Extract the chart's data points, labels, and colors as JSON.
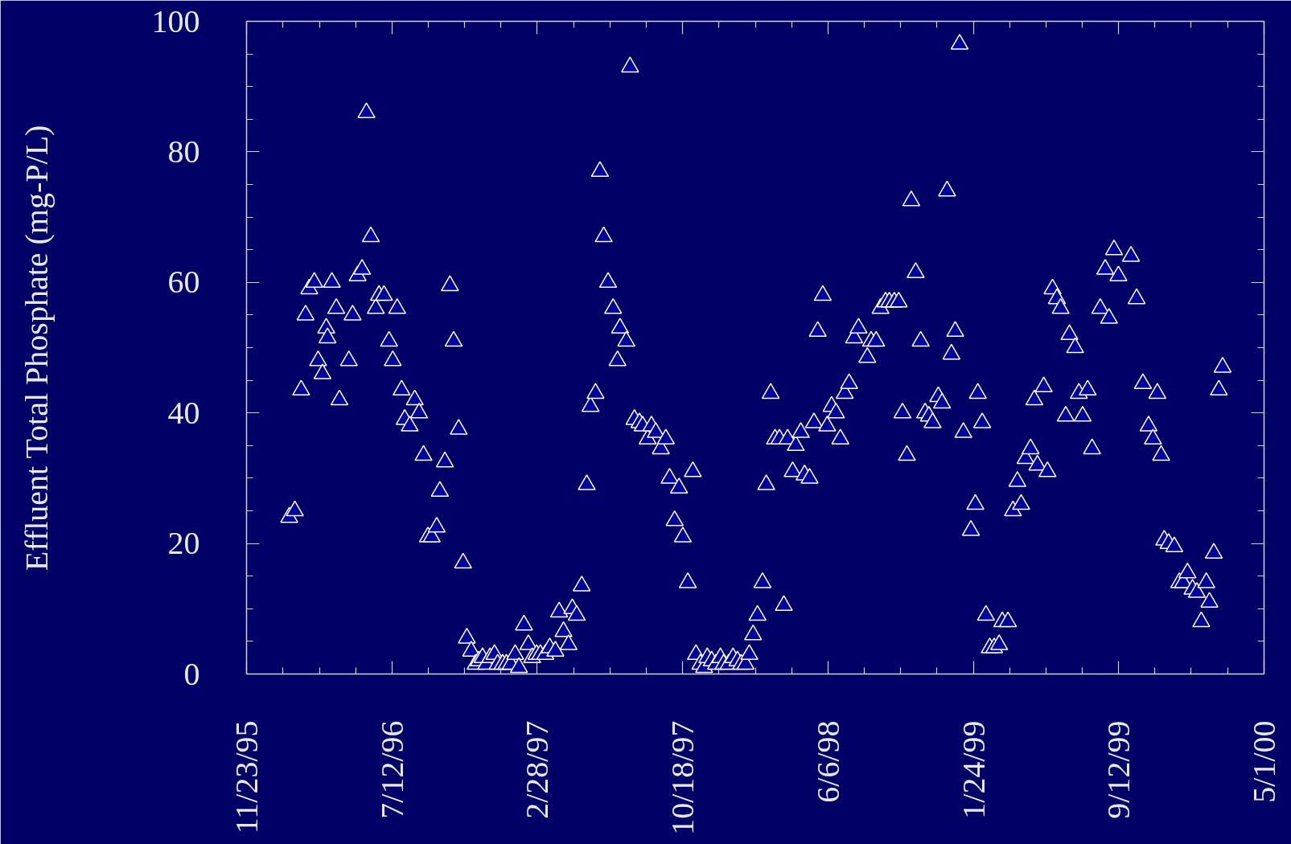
{
  "chart_data": {
    "type": "scatter",
    "ylabel": "Effluent Total Phosphate (mg-P/L)",
    "marker": "triangle",
    "color": "#ffffff",
    "xlim": [
      "1995-11-23",
      "2000-05-01"
    ],
    "xticks": [
      {
        "value": "1995-11-23",
        "label": "11/23/95"
      },
      {
        "value": "1996-07-12",
        "label": "7/12/96"
      },
      {
        "value": "1997-02-28",
        "label": "2/28/97"
      },
      {
        "value": "1997-10-18",
        "label": "10/18/97"
      },
      {
        "value": "1998-06-06",
        "label": "6/6/98"
      },
      {
        "value": "1999-01-24",
        "label": "1/24/99"
      },
      {
        "value": "1999-09-12",
        "label": "9/12/99"
      },
      {
        "value": "2000-05-01",
        "label": "5/1/00"
      }
    ],
    "ylim": [
      0,
      100
    ],
    "yticks": [
      0,
      20,
      40,
      60,
      80,
      100
    ],
    "x": [
      "1996-01-30",
      "1996-02-08",
      "1996-02-18",
      "1996-02-25",
      "1996-03-02",
      "1996-03-10",
      "1996-03-16",
      "1996-03-23",
      "1996-03-29",
      "1996-03-31",
      "1996-04-07",
      "1996-04-14",
      "1996-04-19",
      "1996-05-04",
      "1996-05-10",
      "1996-05-18",
      "1996-05-25",
      "1996-06-01",
      "1996-06-08",
      "1996-06-16",
      "1996-06-21",
      "1996-06-29",
      "1996-07-07",
      "1996-07-13",
      "1996-07-20",
      "1996-07-27",
      "1996-08-01",
      "1996-08-09",
      "1996-08-17",
      "1996-08-24",
      "1996-08-31",
      "1996-09-07",
      "1996-09-13",
      "1996-09-21",
      "1996-09-26",
      "1996-10-04",
      "1996-10-12",
      "1996-10-18",
      "1996-10-26",
      "1996-11-02",
      "1996-11-08",
      "1996-11-15",
      "1996-11-22",
      "1996-11-27",
      "1996-12-03",
      "1996-12-09",
      "1996-12-15",
      "1996-12-22",
      "1996-12-27",
      "1997-01-04",
      "1997-01-10",
      "1997-01-17",
      "1997-01-24",
      "1997-01-30",
      "1997-02-07",
      "1997-02-14",
      "1997-02-20",
      "1997-02-27",
      "1997-03-05",
      "1997-03-13",
      "1997-03-20",
      "1997-03-29",
      "1997-04-04",
      "1997-04-11",
      "1997-04-19",
      "1997-04-25",
      "1997-05-02",
      "1997-05-10",
      "1997-05-18",
      "1997-05-24",
      "1997-06-01",
      "1997-06-08",
      "1997-06-14",
      "1997-06-21",
      "1997-06-29",
      "1997-07-06",
      "1997-07-10",
      "1997-07-20",
      "1997-07-26",
      "1997-08-02",
      "1997-08-10",
      "1997-08-15",
      "1997-08-23",
      "1997-08-29",
      "1997-09-05",
      "1997-09-13",
      "1997-09-21",
      "1997-09-27",
      "1997-10-05",
      "1997-10-12",
      "1997-10-18",
      "1997-10-26",
      "1997-11-03",
      "1997-11-08",
      "1997-11-15",
      "1997-11-21",
      "1997-11-26",
      "1997-12-03",
      "1997-12-10",
      "1997-12-17",
      "1997-12-22",
      "1997-12-30",
      "1998-01-06",
      "1998-01-13",
      "1998-01-19",
      "1998-01-26",
      "1998-02-01",
      "1998-02-07",
      "1998-02-14",
      "1998-02-22",
      "1998-02-28",
      "1998-03-07",
      "1998-03-14",
      "1998-03-21",
      "1998-03-28",
      "1998-04-03",
      "1998-04-11",
      "1998-04-16",
      "1998-04-24",
      "1998-04-30",
      "1998-05-08",
      "1998-05-15",
      "1998-05-21",
      "1998-05-29",
      "1998-06-05",
      "1998-06-12",
      "1998-06-19",
      "1998-06-26",
      "1998-07-03",
      "1998-07-10",
      "1998-07-18",
      "1998-07-25",
      "1998-08-08",
      "1998-08-14",
      "1998-08-22",
      "1998-08-29",
      "1998-09-06",
      "1998-09-12",
      "1998-09-20",
      "1998-09-27",
      "1998-10-03",
      "1998-10-10",
      "1998-10-17",
      "1998-10-24",
      "1998-11-01",
      "1998-11-08",
      "1998-11-14",
      "1998-11-20",
      "1998-11-29",
      "1998-12-05",
      "1998-12-13",
      "1998-12-20",
      "1998-12-26",
      "1999-01-02",
      "1999-01-08",
      "1999-01-20",
      "1999-01-27",
      "1999-01-31",
      "1999-02-07",
      "1999-02-13",
      "1999-02-19",
      "1999-02-26",
      "1999-03-06",
      "1999-03-11",
      "1999-03-20",
      "1999-03-28",
      "1999-04-04",
      "1999-04-10",
      "1999-04-17",
      "1999-04-25",
      "1999-05-01",
      "1999-05-06",
      "1999-05-16",
      "1999-05-22",
      "1999-05-30",
      "1999-06-06",
      "1999-06-12",
      "1999-06-20",
      "1999-06-26",
      "1999-07-05",
      "1999-07-11",
      "1999-07-17",
      "1999-07-25",
      "1999-08-01",
      "1999-08-14",
      "1999-08-22",
      "1999-08-28",
      "1999-09-05",
      "1999-09-12",
      "1999-10-02",
      "1999-10-11",
      "1999-10-21",
      "1999-10-30",
      "1999-11-06",
      "1999-11-13",
      "1999-11-19",
      "1999-11-24",
      "1999-12-01",
      "1999-12-10",
      "1999-12-18",
      "1999-12-24",
      "1999-12-31",
      "2000-01-08",
      "2000-01-15",
      "2000-01-22",
      "2000-01-30",
      "2000-02-04",
      "2000-02-11",
      "2000-02-19",
      "2000-02-25"
    ],
    "values": [
      24,
      25,
      43.5,
      55,
      59,
      60,
      48,
      46,
      53,
      51.5,
      60,
      56,
      42,
      48,
      55,
      61,
      62,
      86,
      67,
      56,
      58,
      58,
      51,
      48,
      56,
      43.5,
      39,
      38,
      42,
      40,
      33.5,
      21,
      21,
      22.5,
      28,
      32.5,
      59.5,
      51,
      37.5,
      17,
      5.5,
      3.5,
      1.5,
      2,
      2.5,
      1.5,
      2.5,
      3,
      1.5,
      1.5,
      1.5,
      1.5,
      3,
      1,
      7.5,
      4.5,
      2.5,
      3,
      3,
      3,
      4,
      3.5,
      9.5,
      6.5,
      4.5,
      10,
      9,
      13.5,
      29,
      41,
      43,
      77,
      67,
      60,
      56,
      48,
      53,
      51,
      93,
      39,
      38.5,
      38,
      36,
      38,
      37,
      34.5,
      36,
      30,
      23.5,
      28.5,
      21,
      14,
      31,
      3,
      1.5,
      1,
      2.5,
      2,
      1.5,
      2.5,
      1.5,
      1.5,
      2.5,
      2,
      1.5,
      1.5,
      3,
      6,
      9,
      14,
      29,
      43,
      36,
      36,
      10.5,
      36,
      31,
      35,
      37,
      30.5,
      30,
      38.5,
      52.5,
      58,
      38,
      41,
      40,
      36,
      43,
      44.5,
      51.5,
      53,
      48.5,
      51,
      51,
      56,
      57,
      57,
      57,
      57,
      40,
      33.5,
      72.5,
      61.5,
      51,
      40,
      39.5,
      38.5,
      42.5,
      41.5,
      74,
      49,
      52.5,
      96.5,
      37,
      22,
      26,
      43,
      38.5,
      9,
      4,
      4,
      4.5,
      8,
      8,
      25,
      29.5,
      26,
      33,
      34.5,
      42,
      32,
      44,
      31,
      59,
      57.5,
      56,
      39.5,
      52,
      50,
      43,
      39.5,
      43.5,
      34.5,
      56,
      62,
      54.5,
      65,
      61,
      64,
      57.5,
      44.5,
      38,
      36,
      43,
      33.5,
      20.5,
      20,
      19.5,
      14,
      14,
      15.5,
      13,
      12.5,
      8,
      14,
      11,
      18.5,
      43.5,
      47
    ]
  }
}
